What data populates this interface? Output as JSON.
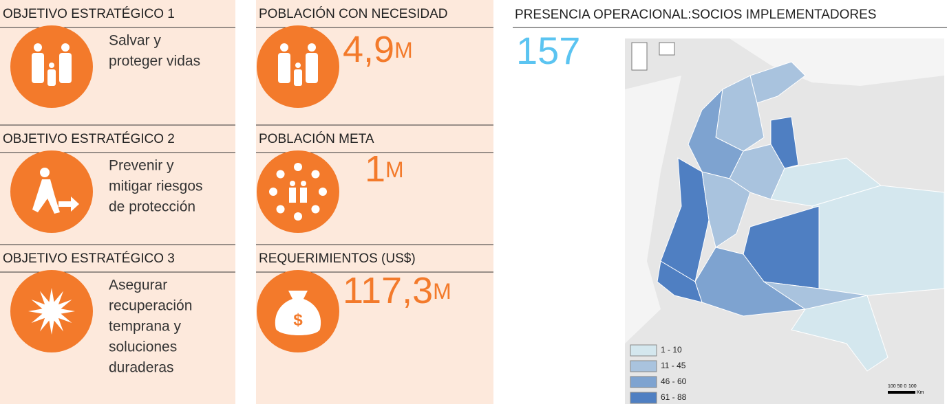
{
  "objectives": [
    {
      "heading": "OBJETIVO ESTRATÉGICO 1",
      "lines": [
        "Salvar y",
        "proteger vidas"
      ]
    },
    {
      "heading": "OBJETIVO ESTRATÉGICO 2",
      "lines": [
        "Prevenir y",
        "mitigar riesgos",
        "de protección"
      ]
    },
    {
      "heading": "OBJETIVO ESTRATÉGICO 3",
      "lines": [
        "Asegurar",
        "recuperación",
        "temprana y",
        "soluciones",
        "duraderas"
      ]
    }
  ],
  "figures": [
    {
      "heading": "POBLACIÓN CON NECESIDAD",
      "value": "4,9",
      "unit": "M"
    },
    {
      "heading": "POBLACIÓN META",
      "value": "1",
      "unit": "M"
    },
    {
      "heading": "REQUERIMIENTOS (US$)",
      "value": "117,3",
      "unit": "M"
    }
  ],
  "map": {
    "title": "PRESENCIA OPERACIONAL:SOCIOS IMPLEMENTADORES",
    "total": "157",
    "legend": [
      {
        "label": "1 - 10",
        "color": "#d4e7ee"
      },
      {
        "label": "11 - 45",
        "color": "#a9c3de"
      },
      {
        "label": "46 - 60",
        "color": "#7ea3d0"
      },
      {
        "label": "61 - 88",
        "color": "#4f7fc2"
      }
    ],
    "scale": [
      "100 50 0",
      "100",
      "Km"
    ]
  }
}
